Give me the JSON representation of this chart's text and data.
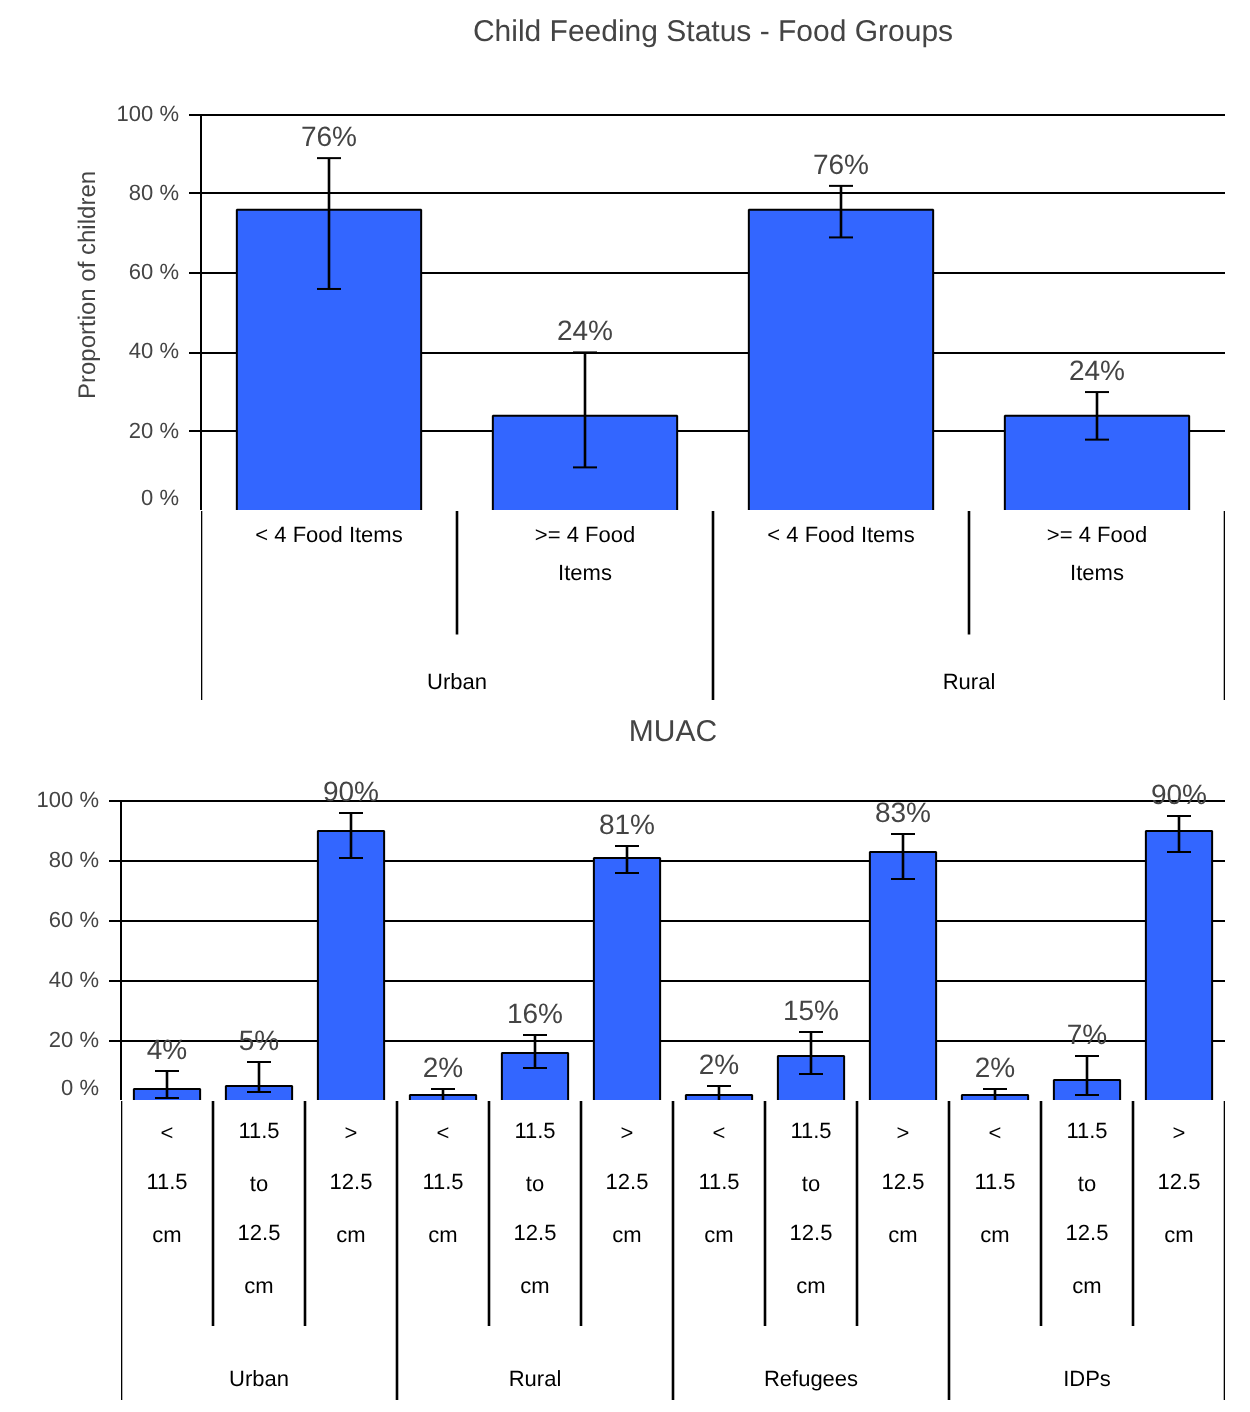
{
  "chart_data": [
    {
      "type": "bar",
      "title": "Child Feeding Status - Food Groups",
      "ylabel": "Proportion of children",
      "categories": [
        "< 4 Food Items",
        ">= 4 Food Items",
        "< 4 Food Items",
        ">= 4 Food Items"
      ],
      "series": [
        {
          "color": "#3366ff",
          "values": [
            76,
            24,
            76,
            24
          ],
          "errors": [
            [
              56,
              89
            ],
            [
              11,
              40
            ],
            [
              69,
              82
            ],
            [
              18,
              30
            ]
          ],
          "value_labels": [
            "76%",
            "24%",
            "76%",
            "24%"
          ]
        }
      ],
      "annotations": [
        "Urban",
        "Rural"
      ],
      "ylim": [
        0,
        100
      ],
      "yticks": [
        {
          "value": 0,
          "label": "0 %"
        },
        {
          "value": 20,
          "label": "20 %"
        },
        {
          "value": 40,
          "label": "40 %"
        },
        {
          "value": 60,
          "label": "60 %"
        },
        {
          "value": 80,
          "label": "80 %"
        },
        {
          "value": 100,
          "label": "100 %"
        }
      ],
      "grid": "y"
    },
    {
      "type": "bar",
      "title": "MUAC",
      "categories": [
        "< 11.5 cm",
        "11.5 to 12.5 cm",
        "> 12.5 cm",
        "< 11.5 cm",
        "11.5 to 12.5 cm",
        "> 12.5 cm",
        "< 11.5 cm",
        "11.5 to 12.5 cm",
        "> 12.5 cm",
        "< 11.5 cm",
        "11.5 to 12.5 cm",
        "> 12.5 cm"
      ],
      "series": [
        {
          "color": "#3366ff",
          "values": [
            4,
            5,
            90,
            2,
            16,
            81,
            2,
            15,
            83,
            2,
            7,
            90
          ],
          "errors": [
            [
              1,
              10
            ],
            [
              3,
              13
            ],
            [
              81,
              96
            ],
            [
              0,
              4
            ],
            [
              11,
              22
            ],
            [
              76,
              85
            ],
            [
              0,
              5
            ],
            [
              9,
              23
            ],
            [
              74,
              89
            ],
            [
              0,
              4
            ],
            [
              2,
              15
            ],
            [
              83,
              95
            ]
          ],
          "value_labels": [
            "4%",
            "5%",
            "90%",
            "2%",
            "16%",
            "81%",
            "2%",
            "15%",
            "83%",
            "2%",
            "7%",
            "90%"
          ]
        }
      ],
      "annotations": [
        "Urban",
        "Rural",
        "Refugees",
        "IDPs"
      ],
      "ylim": [
        0,
        100
      ],
      "yticks": [
        {
          "value": 0,
          "label": "0 %"
        },
        {
          "value": 20,
          "label": "20 %"
        },
        {
          "value": 40,
          "label": "40 %"
        },
        {
          "value": 60,
          "label": "60 %"
        },
        {
          "value": 80,
          "label": "80 %"
        },
        {
          "value": 100,
          "label": "100 %"
        }
      ],
      "grid": "y"
    }
  ]
}
